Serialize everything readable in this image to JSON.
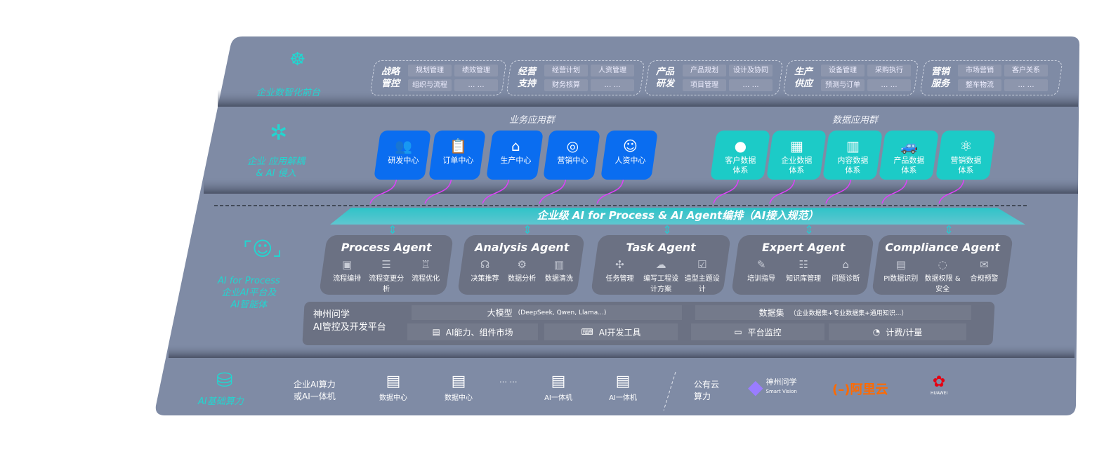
{
  "front": {
    "label": "企业数智化前台",
    "icon": "brain-circuit-icon",
    "groups": [
      {
        "title": [
          "战略",
          "管控"
        ],
        "items": [
          "规划管理",
          "绩效管理",
          "组织与流程",
          "… …"
        ]
      },
      {
        "title": [
          "经营",
          "支持"
        ],
        "items": [
          "经营计划",
          "人资管理",
          "财务核算",
          "… …"
        ]
      },
      {
        "title": [
          "产品",
          "研发"
        ],
        "items": [
          "产品规划",
          "设计及协同",
          "项目管理",
          "… …"
        ]
      },
      {
        "title": [
          "生产",
          "供应"
        ],
        "items": [
          "设备管理",
          "采购执行",
          "预测与订单",
          "… …"
        ]
      },
      {
        "title": [
          "营销",
          "服务"
        ],
        "items": [
          "市场营销",
          "客户关系",
          "整车物流",
          "… …"
        ]
      }
    ]
  },
  "apps": {
    "label": [
      "企业 应用解耦",
      "& AI 侵入"
    ],
    "icon": "molecule-icon",
    "business_title": "业务应用群",
    "business": [
      {
        "label": "研发中心",
        "icon": "users-icon"
      },
      {
        "label": "订单中心",
        "icon": "clipboard-icon"
      },
      {
        "label": "生产中心",
        "icon": "factory-icon"
      },
      {
        "label": "营销中心",
        "icon": "target-icon"
      },
      {
        "label": "人资中心",
        "icon": "person-icon"
      }
    ],
    "data_title": "数据应用群",
    "data": [
      {
        "label": [
          "客户数据",
          "体系"
        ],
        "icon": "user-icon"
      },
      {
        "label": [
          "企业数据",
          "体系"
        ],
        "icon": "building-icon"
      },
      {
        "label": [
          "内容数据",
          "体系"
        ],
        "icon": "books-icon"
      },
      {
        "label": [
          "产品数据",
          "体系"
        ],
        "icon": "car-icon"
      },
      {
        "label": [
          "营销数据",
          "体系"
        ],
        "icon": "atom-icon"
      }
    ]
  },
  "platform": {
    "label": [
      "AI for Process",
      "企业AI平台及",
      "AI智能体"
    ],
    "icon": "face-scan-icon",
    "banner": "企业级 AI for Process & AI Agent编排（AI接入规范）",
    "agents": [
      {
        "title": "Process Agent",
        "items": [
          "流程编排",
          "流程变更分析",
          "流程优化"
        ]
      },
      {
        "title": "Analysis Agent",
        "items": [
          "决策推荐",
          "数据分析",
          "数据清洗"
        ]
      },
      {
        "title": "Task Agent",
        "items": [
          "任务管理",
          "编写工程设计方案",
          "造型主题设计"
        ]
      },
      {
        "title": "Expert Agent",
        "items": [
          "培训指导",
          "知识库管理",
          "问题诊断"
        ]
      },
      {
        "title": "Compliance Agent",
        "items": [
          "PI数据识别",
          "数据权限 & 安全",
          "合规预警"
        ]
      }
    ],
    "base_title": [
      "神州问学",
      "AI管控及开发平台"
    ],
    "model": "大模型",
    "model_note": "(DeepSeek, Qwen, Llama...)",
    "dataset": "数据集",
    "dataset_note": "（企业数据集+专业数据集+通用知识...）",
    "tools": [
      "AI能力、组件市场",
      "AI开发工具",
      "平台监控",
      "计费/计量"
    ]
  },
  "compute": {
    "label": "AI基础算力",
    "icon": "database-icon",
    "onprem": [
      "企业AI算力",
      "或AI一体机"
    ],
    "servers": [
      "数据中心",
      "数据中心",
      "AI一体机",
      "AI一体机"
    ],
    "ellipsis": "… …",
    "cloud": [
      "公有云",
      "算力"
    ],
    "vendors": {
      "smartvision": "神州问学",
      "smartvision_sub": "Smart Vision",
      "aliyun": "阿里云",
      "huawei": "HUAWEI"
    },
    "colors": {
      "accent": "#22d6d0",
      "business": "#0a6df0",
      "data": "#1ccbc7",
      "aliyun": "#ff6a00",
      "huawei": "#e60012",
      "arrow": "#e040fb"
    }
  }
}
